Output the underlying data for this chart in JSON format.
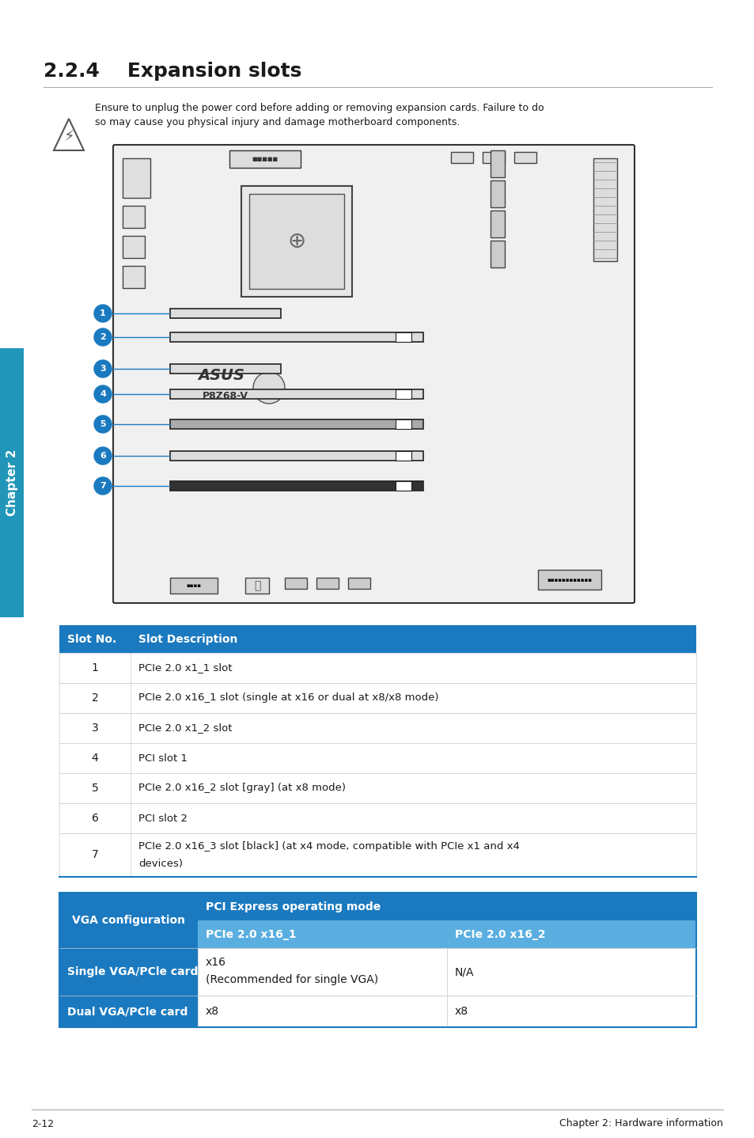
{
  "title": "2.2.4    Expansion slots",
  "warning_text": "Ensure to unplug the power cord before adding or removing expansion cards. Failure to do\nso may cause you physical injury and damage motherboard components.",
  "table1_header": [
    "Slot No.",
    "Slot Description"
  ],
  "table1_rows": [
    [
      "1",
      "PCIe 2.0 x1_1 slot"
    ],
    [
      "2",
      "PCIe 2.0 x16_1 slot (single at x16 or dual at x8/x8 mode)"
    ],
    [
      "3",
      "PCIe 2.0 x1_2 slot"
    ],
    [
      "4",
      "PCI slot 1"
    ],
    [
      "5",
      "PCIe 2.0 x16_2 slot [gray] (at x8 mode)"
    ],
    [
      "6",
      "PCI slot 2"
    ],
    [
      "7",
      "PCIe 2.0 x16_3 slot [black] (at x4 mode, compatible with PCIe x1 and x4\ndevices)"
    ]
  ],
  "table2_header_top": "PCI Express operating mode",
  "table2_header_left": "VGA configuration",
  "table2_col1": "PCIe 2.0 x16_1",
  "table2_col2": "PCIe 2.0 x16_2",
  "table2_rows": [
    [
      "Single VGA/PCle card",
      "x16\n(Recommended for single VGA)",
      "N/A"
    ],
    [
      "Dual VGA/PCle card",
      "x8",
      "x8"
    ]
  ],
  "header_blue": "#1b7abf",
  "header_blue_light": "#5aaee0",
  "row_white": "#ffffff",
  "row_border": "#cccccc",
  "text_dark": "#1a1a1a",
  "text_white": "#ffffff",
  "chapter_tab_color": "#2196b8",
  "footer_left": "2-12",
  "footer_right": "Chapter 2: Hardware information",
  "page_bg": "#ffffff"
}
